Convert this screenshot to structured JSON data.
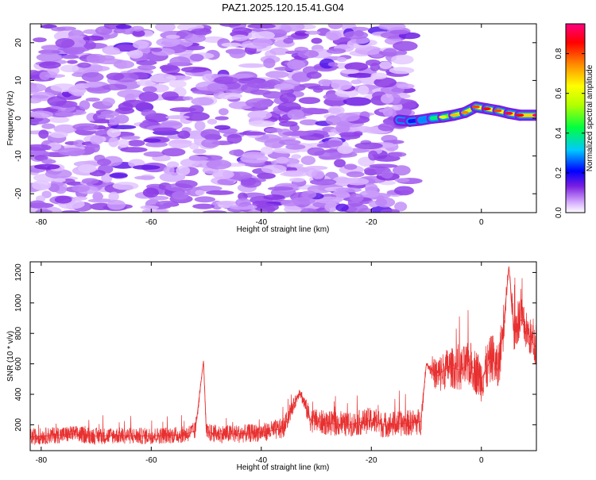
{
  "chart_data": [
    {
      "type": "heatmap",
      "title": "PAZ1.2025.120.15.41.G04",
      "xlabel": "Height of straight line (km)",
      "ylabel": "Frequency (Hz)",
      "xlim": [
        -82,
        10
      ],
      "ylim": [
        -25,
        25
      ],
      "x_ticks": [
        -80,
        -60,
        -40,
        -20,
        0
      ],
      "y_ticks": [
        -20,
        -10,
        0,
        10,
        20
      ],
      "colorbar": {
        "label": "Normalized spectral amplitude",
        "range": [
          0,
          0.95
        ],
        "ticks": [
          0.0,
          0.2,
          0.4,
          0.6,
          0.8
        ],
        "tick_labels": [
          "0.0",
          "0.2",
          "0.4",
          "0.6",
          "0.8"
        ]
      },
      "ridge": {
        "x": [
          -15,
          -13,
          -11,
          -9,
          -7,
          -5,
          -3,
          -1,
          1,
          3,
          5,
          7,
          10
        ],
        "freq": [
          -0.5,
          -0.8,
          -0.5,
          0,
          0.3,
          0.8,
          1.5,
          3,
          2.5,
          2,
          1.3,
          0.8,
          0.8
        ],
        "peak_amplitude": [
          0.15,
          0.2,
          0.3,
          0.45,
          0.6,
          0.7,
          0.75,
          0.8,
          0.85,
          0.8,
          0.9,
          0.85,
          0.95
        ]
      },
      "noise_region": {
        "x": [
          -82,
          -13
        ],
        "typical_amplitude": [
          0.03,
          0.12
        ]
      }
    },
    {
      "type": "line",
      "xlabel": "Height of straight line (km)",
      "ylabel": "SNR (10 * v/v)",
      "xlim": [
        -82,
        10
      ],
      "ylim": [
        30,
        1270
      ],
      "x_ticks": [
        -80,
        -60,
        -40,
        -20,
        0
      ],
      "y_ticks": [
        200,
        400,
        600,
        800,
        1000,
        1200
      ],
      "series": [
        {
          "color": "#e83030",
          "x": [
            -82,
            -78,
            -74,
            -70,
            -66,
            -62,
            -58,
            -54,
            -52,
            -50.5,
            -50,
            -48,
            -44,
            -40,
            -36,
            -33,
            -31,
            -28,
            -24,
            -20,
            -18,
            -14,
            -11,
            -10,
            -8,
            -6,
            -4,
            -2,
            0,
            2,
            3,
            4,
            5,
            6,
            7,
            8,
            10
          ],
          "values": [
            120,
            130,
            140,
            125,
            130,
            125,
            130,
            135,
            160,
            620,
            150,
            140,
            140,
            150,
            175,
            420,
            230,
            210,
            200,
            230,
            200,
            210,
            220,
            600,
            520,
            580,
            560,
            600,
            500,
            650,
            550,
            850,
            1240,
            800,
            900,
            830,
            700
          ],
          "noise": [
            55,
            55,
            55,
            55,
            55,
            55,
            55,
            55,
            60,
            0,
            60,
            60,
            60,
            60,
            70,
            30,
            80,
            80,
            80,
            85,
            85,
            85,
            90,
            0,
            130,
            130,
            140,
            150,
            150,
            160,
            160,
            160,
            0,
            150,
            150,
            130,
            120
          ]
        }
      ]
    }
  ]
}
